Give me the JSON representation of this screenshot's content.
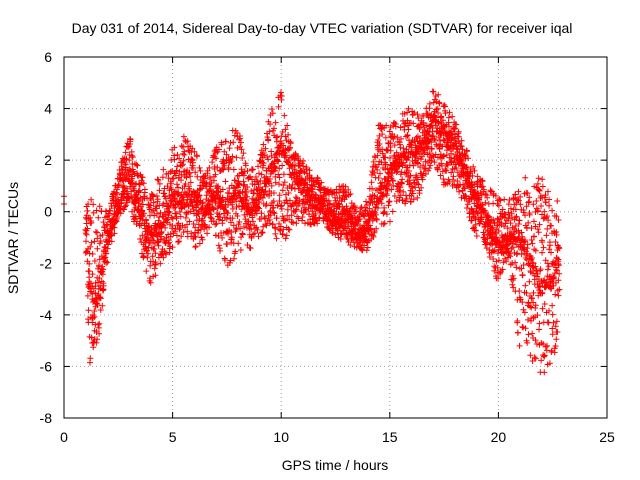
{
  "chart_data": {
    "type": "scatter",
    "title": "Day 031 of 2014, Sidereal Day-to-day VTEC variation (SDTVAR) for receiver iqal",
    "xlabel": "GPS time / hours",
    "ylabel": "SDTVAR / TECUs",
    "xlim": [
      0,
      25
    ],
    "ylim": [
      -8,
      6
    ],
    "xticks": [
      0,
      5,
      10,
      15,
      20,
      25
    ],
    "yticks": [
      -8,
      -6,
      -4,
      -2,
      0,
      2,
      4,
      6
    ],
    "grid": true,
    "marker": "+",
    "series": [
      {
        "name": "SDTVAR",
        "color": "#ff0000",
        "envelope_note": "approximate min/max band of the dense plus-marker cloud, in data units",
        "x": [
          0.0,
          1.0,
          1.2,
          1.5,
          2.0,
          2.5,
          3.0,
          3.5,
          4.0,
          4.5,
          5.0,
          5.5,
          6.0,
          6.5,
          7.0,
          7.5,
          8.0,
          8.5,
          9.0,
          9.5,
          10.0,
          10.5,
          11.0,
          11.5,
          12.0,
          12.5,
          13.0,
          13.5,
          14.0,
          14.5,
          15.0,
          15.5,
          16.0,
          16.5,
          17.0,
          17.5,
          18.0,
          18.5,
          19.0,
          19.5,
          20.0,
          20.5,
          21.0,
          21.5,
          22.0,
          22.5,
          22.8
        ],
        "y_center": [
          0.4,
          -0.5,
          -3.0,
          -3.5,
          -1.0,
          0.0,
          1.5,
          0.0,
          -1.0,
          -0.5,
          0.5,
          0.5,
          0.5,
          0.0,
          0.5,
          0.0,
          1.0,
          0.0,
          0.5,
          1.5,
          2.5,
          1.5,
          1.0,
          0.5,
          0.0,
          -0.5,
          0.0,
          -1.0,
          -0.5,
          0.5,
          1.5,
          2.0,
          2.5,
          2.5,
          3.5,
          3.0,
          2.5,
          1.5,
          0.5,
          -0.5,
          -1.5,
          -1.0,
          -1.0,
          -2.0,
          -3.0,
          -2.5,
          -1.5
        ],
        "y_low": [
          0.3,
          -2.0,
          -6.0,
          -5.5,
          -2.0,
          -0.5,
          0.5,
          -1.5,
          -3.0,
          -2.0,
          -1.5,
          -1.0,
          -1.5,
          -1.0,
          -1.0,
          -2.5,
          -1.5,
          -1.5,
          -1.0,
          -0.5,
          -1.5,
          -0.5,
          -0.5,
          -0.5,
          -0.5,
          -1.0,
          -1.2,
          -1.5,
          -1.5,
          -0.5,
          -0.5,
          0.5,
          0.0,
          1.0,
          2.0,
          1.0,
          1.0,
          0.0,
          -1.0,
          -1.5,
          -2.8,
          -2.0,
          -5.5,
          -5.7,
          -6.4,
          -5.8,
          -5.0
        ],
        "y_high": [
          0.6,
          0.3,
          0.5,
          0.3,
          0.0,
          1.5,
          3.0,
          1.5,
          1.0,
          1.5,
          2.5,
          3.0,
          2.5,
          1.5,
          2.5,
          3.0,
          3.3,
          1.5,
          2.0,
          4.0,
          4.7,
          2.5,
          2.0,
          1.5,
          1.0,
          1.0,
          1.2,
          0.0,
          0.5,
          3.5,
          3.3,
          4.0,
          4.0,
          3.8,
          4.8,
          4.5,
          3.5,
          2.5,
          1.5,
          1.0,
          0.5,
          0.5,
          1.5,
          1.5,
          1.3,
          0.5,
          0.5
        ]
      }
    ]
  }
}
